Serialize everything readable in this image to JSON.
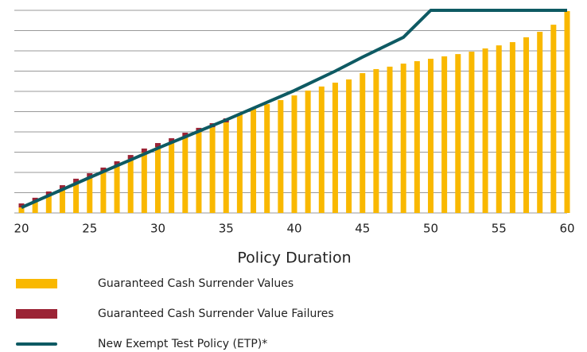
{
  "chart_data": {
    "type": "bar",
    "x_label": "Policy Duration",
    "categories": [
      20,
      21,
      22,
      23,
      24,
      25,
      26,
      27,
      28,
      29,
      30,
      31,
      32,
      33,
      34,
      35,
      36,
      37,
      38,
      39,
      40,
      41,
      42,
      43,
      44,
      45,
      46,
      47,
      48,
      49,
      50,
      51,
      52,
      53,
      54,
      55,
      56,
      57,
      58,
      59,
      60
    ],
    "xlim": [
      20,
      60
    ],
    "xticks": [
      20,
      25,
      30,
      35,
      40,
      45,
      50,
      55,
      60
    ],
    "ylim": [
      0,
      10
    ],
    "yticks": [
      0,
      1,
      2,
      3,
      4,
      5,
      6,
      7,
      8,
      9,
      10
    ],
    "y_tick_labels": false,
    "grid": true,
    "series": [
      {
        "name": "Guaranteed Cash Surrender Values",
        "color": "#f9b800",
        "values": [
          0.27,
          0.55,
          0.86,
          1.17,
          1.49,
          1.76,
          2.04,
          2.35,
          2.66,
          2.98,
          3.25,
          3.49,
          3.76,
          4.0,
          4.23,
          4.47,
          4.9,
          5.14,
          5.37,
          5.57,
          5.8,
          6.04,
          6.24,
          6.43,
          6.59,
          6.9,
          7.1,
          7.22,
          7.37,
          7.49,
          7.61,
          7.73,
          7.84,
          7.96,
          8.12,
          8.27,
          8.43,
          8.67,
          8.94,
          9.29,
          9.96
        ]
      },
      {
        "name": "Guaranteed Cash Surrender Value Failures",
        "color": "#9b2335",
        "values": [
          0.2,
          0.2,
          0.2,
          0.2,
          0.2,
          0.2,
          0.2,
          0.2,
          0.2,
          0.2,
          0.2,
          0.2,
          0.2,
          0.2,
          0.2,
          0.2,
          null,
          null,
          null,
          null,
          null,
          null,
          null,
          null,
          null,
          null,
          null,
          null,
          null,
          null,
          null,
          null,
          null,
          null,
          null,
          null,
          null,
          null,
          null,
          null,
          null
        ]
      },
      {
        "name": "New Exempt Test Policy (ETP)*",
        "color": "#0e5a63",
        "type": "line",
        "x": [
          20,
          25,
          30,
          35,
          40,
          43,
          45,
          48,
          50,
          60
        ],
        "values": [
          0.27,
          1.75,
          3.2,
          4.59,
          6.04,
          7.0,
          7.69,
          8.67,
          10,
          10
        ]
      }
    ]
  }
}
